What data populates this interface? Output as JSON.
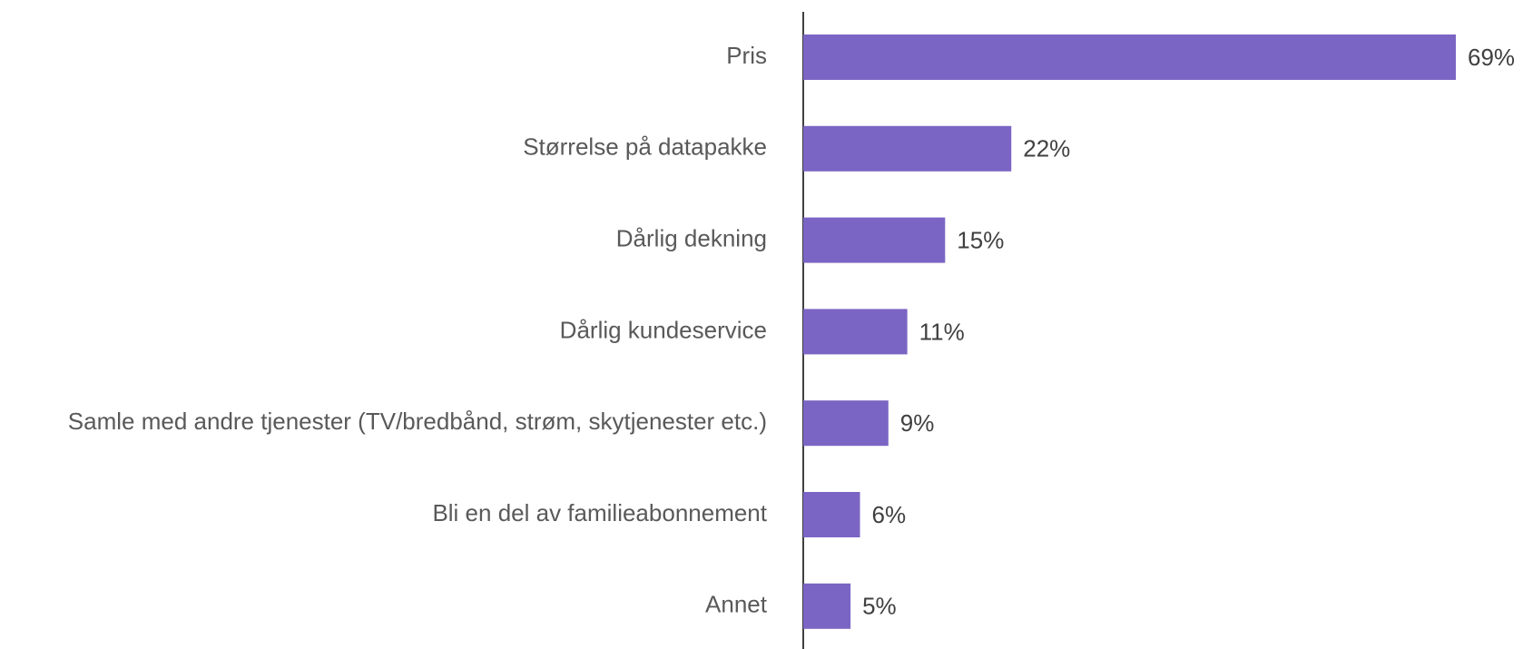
{
  "chart_data": {
    "type": "barh",
    "categories": [
      "Pris",
      "Størrelse på datapakke",
      "Dårlig dekning",
      "Dårlig kundeservice",
      "Samle med andre tjenester (TV/bredbånd, strøm, skytjenester etc.)",
      "Bli en del av familieabonnement",
      "Annet"
    ],
    "values": [
      69,
      22,
      15,
      11,
      9,
      6,
      5
    ],
    "value_labels": [
      "69%",
      "22%",
      "15%",
      "11%",
      "9%",
      "6%",
      "5%"
    ],
    "color": "#7b65c4"
  }
}
